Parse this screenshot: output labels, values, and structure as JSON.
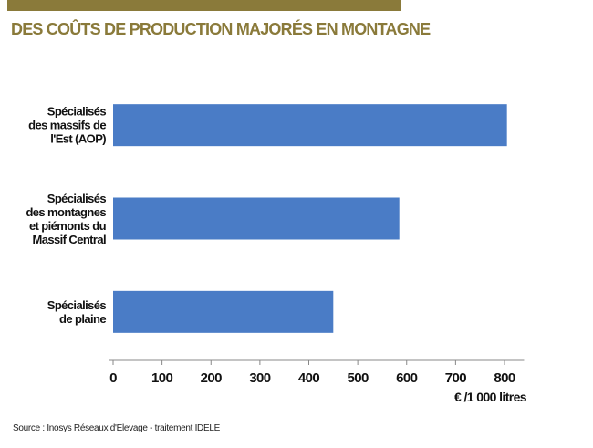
{
  "chart_data": {
    "type": "barh",
    "title": "DES COÛTS DE PRODUCTION MAJORÉS EN MONTAGNE",
    "categories": [
      "Spécialisés\ndes massifs de\nl'Est (AOP)",
      "Spécialisés\ndes montagnes\net piémonts du\nMassif Central",
      "Spécialisés\nde plaine"
    ],
    "values": [
      805,
      585,
      450
    ],
    "color": "#4a7cc6",
    "xlim": [
      0,
      840
    ],
    "xticks": [
      0,
      100,
      200,
      300,
      400,
      500,
      600,
      700,
      800
    ],
    "xlabel": "€ /1 000 litres",
    "source": "Source : Inosys Réseaux d'Elevage - traitement IDELE"
  }
}
